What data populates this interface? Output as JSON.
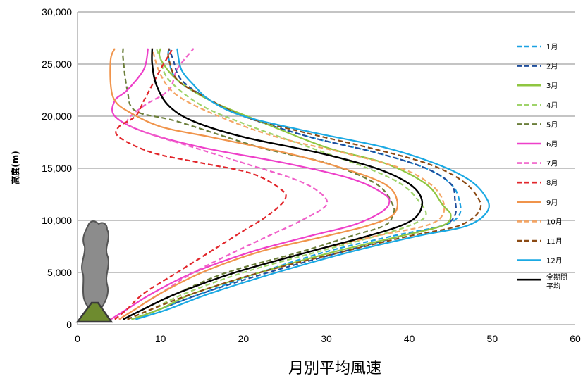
{
  "chart_data": {
    "type": "line",
    "title": "",
    "xlabel": "月別平均風速",
    "ylabel": "高度(m)",
    "xlim": [
      0,
      60
    ],
    "ylim": [
      0,
      30000
    ],
    "x_ticks": [
      "0",
      "10",
      "20",
      "30",
      "40",
      "50",
      "60"
    ],
    "y_ticks": [
      "0",
      "5,000",
      "10,000",
      "15,000",
      "20,000",
      "25,000",
      "30,000"
    ],
    "grid": "horizontal",
    "legend_position": "right",
    "series": [
      {
        "name": "1月",
        "color": "#1ba1e2",
        "dash": "dashed",
        "points": [
          [
            7,
            500
          ],
          [
            10,
            1500
          ],
          [
            15,
            3000
          ],
          [
            22,
            5000
          ],
          [
            30,
            7000
          ],
          [
            38,
            8500
          ],
          [
            44,
            9500
          ],
          [
            46,
            10500
          ],
          [
            46,
            12000
          ],
          [
            45,
            13500
          ],
          [
            42,
            15000
          ],
          [
            36,
            16500
          ],
          [
            28,
            18000
          ],
          [
            20,
            20000
          ],
          [
            16,
            21500
          ],
          [
            12,
            23500
          ],
          [
            11,
            25500
          ],
          [
            11,
            26500
          ]
        ]
      },
      {
        "name": "2月",
        "color": "#1f4e9c",
        "dash": "dashed",
        "points": [
          [
            6.5,
            500
          ],
          [
            10,
            1500
          ],
          [
            15,
            3000
          ],
          [
            23,
            5000
          ],
          [
            32,
            7000
          ],
          [
            39,
            8500
          ],
          [
            44,
            9500
          ],
          [
            45.5,
            10500
          ],
          [
            45.5,
            12000
          ],
          [
            45,
            13500
          ],
          [
            42,
            15000
          ],
          [
            36,
            16500
          ],
          [
            28,
            18000
          ],
          [
            20,
            20000
          ],
          [
            16,
            21500
          ],
          [
            12.5,
            23500
          ],
          [
            11.5,
            25500
          ],
          [
            11,
            26500
          ]
        ]
      },
      {
        "name": "3月",
        "color": "#8fc640",
        "dash": "solid",
        "points": [
          [
            6.5,
            500
          ],
          [
            10,
            1500
          ],
          [
            14,
            3000
          ],
          [
            22,
            5000
          ],
          [
            31,
            7000
          ],
          [
            39,
            8500
          ],
          [
            44,
            9500
          ],
          [
            45,
            10500
          ],
          [
            44,
            11500
          ],
          [
            42,
            13500
          ],
          [
            37,
            15500
          ],
          [
            30,
            17000
          ],
          [
            22,
            19500
          ],
          [
            16,
            21500
          ],
          [
            12,
            23500
          ],
          [
            10,
            25500
          ],
          [
            10,
            26500
          ]
        ]
      },
      {
        "name": "4月",
        "color": "#9fd36a",
        "dash": "dashed",
        "points": [
          [
            6,
            500
          ],
          [
            9,
            1500
          ],
          [
            13,
            3000
          ],
          [
            20,
            5000
          ],
          [
            29,
            7000
          ],
          [
            36,
            8500
          ],
          [
            40,
            9500
          ],
          [
            42,
            10500
          ],
          [
            41,
            12000
          ],
          [
            39,
            13500
          ],
          [
            35,
            15000
          ],
          [
            28,
            17000
          ],
          [
            21,
            19000
          ],
          [
            15,
            21000
          ],
          [
            11,
            23500
          ],
          [
            10,
            25500
          ],
          [
            9.5,
            26500
          ]
        ]
      },
      {
        "name": "5月",
        "color": "#6b7e3a",
        "dash": "dashed",
        "points": [
          [
            5.5,
            500
          ],
          [
            8,
            1500
          ],
          [
            12,
            3000
          ],
          [
            18,
            5000
          ],
          [
            27,
            7000
          ],
          [
            33,
            8500
          ],
          [
            37,
            9500
          ],
          [
            38,
            10500
          ],
          [
            38,
            11500
          ],
          [
            36,
            13500
          ],
          [
            30,
            15500
          ],
          [
            22,
            17000
          ],
          [
            12,
            19500
          ],
          [
            7,
            20500
          ],
          [
            6,
            22500
          ],
          [
            5.5,
            25500
          ],
          [
            5.5,
            26500
          ]
        ]
      },
      {
        "name": "6月",
        "color": "#ee40c9",
        "dash": "solid",
        "points": [
          [
            4,
            500
          ],
          [
            6,
            1500
          ],
          [
            9,
            3000
          ],
          [
            14,
            5000
          ],
          [
            21,
            7000
          ],
          [
            28,
            8500
          ],
          [
            33,
            9500
          ],
          [
            36,
            10500
          ],
          [
            37.5,
            11500
          ],
          [
            37,
            12500
          ],
          [
            33,
            14000
          ],
          [
            25,
            15500
          ],
          [
            15,
            17000
          ],
          [
            8,
            18500
          ],
          [
            4.5,
            20000
          ],
          [
            4.5,
            21500
          ],
          [
            6,
            22500
          ],
          [
            8,
            24500
          ],
          [
            8.5,
            26500
          ]
        ]
      },
      {
        "name": "7月",
        "color": "#f060c9",
        "dash": "dashed",
        "points": [
          [
            5,
            500
          ],
          [
            7,
            1500
          ],
          [
            10,
            3000
          ],
          [
            14,
            5000
          ],
          [
            19,
            7000
          ],
          [
            23,
            8500
          ],
          [
            27,
            10000
          ],
          [
            30,
            11500
          ],
          [
            29,
            12800
          ],
          [
            26,
            14000
          ],
          [
            20,
            15500
          ],
          [
            14,
            17000
          ],
          [
            8,
            18500
          ],
          [
            6,
            19500
          ],
          [
            8,
            21000
          ],
          [
            11,
            22500
          ],
          [
            12,
            24500
          ],
          [
            14,
            26500
          ]
        ]
      },
      {
        "name": "8月",
        "color": "#e2262b",
        "dash": "dashed",
        "points": [
          [
            4.5,
            500
          ],
          [
            6,
            1500
          ],
          [
            8,
            3000
          ],
          [
            12,
            5000
          ],
          [
            16,
            7000
          ],
          [
            20,
            9000
          ],
          [
            23,
            10500
          ],
          [
            25,
            12000
          ],
          [
            24.5,
            13000
          ],
          [
            21,
            14500
          ],
          [
            15,
            15500
          ],
          [
            9,
            16500
          ],
          [
            5,
            18000
          ],
          [
            5,
            19000
          ],
          [
            7,
            20000
          ],
          [
            8,
            21500
          ],
          [
            9,
            23000
          ],
          [
            10,
            24500
          ],
          [
            11.5,
            26500
          ]
        ]
      },
      {
        "name": "9月",
        "color": "#f0944b",
        "dash": "solid",
        "points": [
          [
            5,
            500
          ],
          [
            7,
            1500
          ],
          [
            10,
            3000
          ],
          [
            15,
            5000
          ],
          [
            22,
            7000
          ],
          [
            30,
            8500
          ],
          [
            35,
            9500
          ],
          [
            38,
            10500
          ],
          [
            38.5,
            12000
          ],
          [
            37,
            13500
          ],
          [
            32,
            15000
          ],
          [
            25,
            16500
          ],
          [
            16,
            18000
          ],
          [
            10,
            19000
          ],
          [
            6,
            20500
          ],
          [
            4.5,
            21500
          ],
          [
            4,
            23000
          ],
          [
            4,
            25500
          ],
          [
            4.5,
            26500
          ]
        ]
      },
      {
        "name": "10月",
        "color": "#f5a665",
        "dash": "dashed",
        "points": [
          [
            5.5,
            500
          ],
          [
            8,
            1500
          ],
          [
            12,
            3000
          ],
          [
            19,
            5000
          ],
          [
            28,
            7000
          ],
          [
            36,
            8500
          ],
          [
            42,
            9500
          ],
          [
            44,
            10500
          ],
          [
            44,
            12000
          ],
          [
            42.5,
            13500
          ],
          [
            39,
            15000
          ],
          [
            32,
            16500
          ],
          [
            24,
            18000
          ],
          [
            17,
            20000
          ],
          [
            12,
            22000
          ],
          [
            10,
            24000
          ],
          [
            9,
            26500
          ]
        ]
      },
      {
        "name": "11月",
        "color": "#8b4a14",
        "dash": "dashed",
        "points": [
          [
            6,
            500
          ],
          [
            9,
            1500
          ],
          [
            14,
            3000
          ],
          [
            22,
            5000
          ],
          [
            32,
            7000
          ],
          [
            40,
            8500
          ],
          [
            46,
            9500
          ],
          [
            48.5,
            11000
          ],
          [
            48,
            12500
          ],
          [
            46,
            14000
          ],
          [
            42,
            15500
          ],
          [
            35,
            17000
          ],
          [
            27,
            18500
          ],
          [
            20,
            20000
          ],
          [
            15,
            22000
          ],
          [
            12,
            23500
          ],
          [
            11,
            25500
          ],
          [
            11,
            26500
          ]
        ]
      },
      {
        "name": "12月",
        "color": "#1aa9e3",
        "dash": "solid",
        "points": [
          [
            7,
            500
          ],
          [
            11,
            1500
          ],
          [
            16,
            3000
          ],
          [
            24,
            5000
          ],
          [
            33,
            7000
          ],
          [
            41,
            8500
          ],
          [
            47,
            9500
          ],
          [
            49.5,
            11000
          ],
          [
            49,
            12500
          ],
          [
            47,
            14000
          ],
          [
            43,
            15500
          ],
          [
            37,
            17000
          ],
          [
            28,
            18500
          ],
          [
            20,
            20000
          ],
          [
            16,
            21500
          ],
          [
            14,
            23000
          ],
          [
            12.5,
            24500
          ],
          [
            12,
            26500
          ]
        ]
      },
      {
        "name": "全期間平均",
        "color": "#000000",
        "dash": "solid",
        "points": [
          [
            5.5,
            500
          ],
          [
            8,
            1500
          ],
          [
            12,
            3000
          ],
          [
            19,
            5000
          ],
          [
            28,
            7000
          ],
          [
            35,
            8500
          ],
          [
            39,
            9500
          ],
          [
            41,
            10500
          ],
          [
            41.5,
            12000
          ],
          [
            40,
            13500
          ],
          [
            36,
            15000
          ],
          [
            29,
            16500
          ],
          [
            20,
            18000
          ],
          [
            14,
            19500
          ],
          [
            11,
            21000
          ],
          [
            9.5,
            23000
          ],
          [
            9,
            25000
          ],
          [
            9,
            26500
          ]
        ]
      }
    ]
  }
}
